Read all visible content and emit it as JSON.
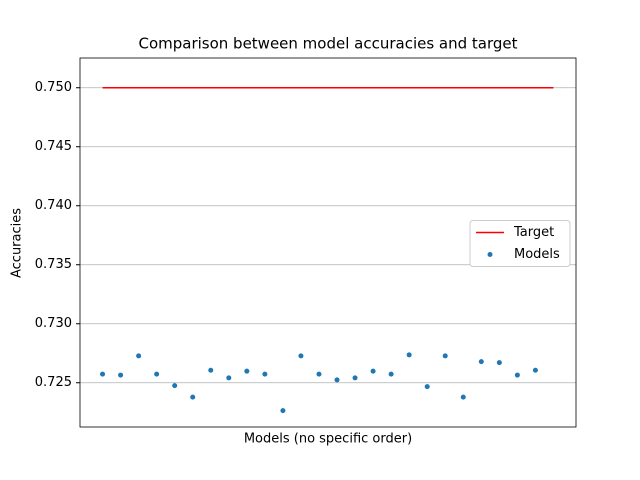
{
  "chart_data": {
    "type": "scatter",
    "title": "Comparison between model accuracies and target",
    "x_label": "Models (no specific order)",
    "y_label": "Accuracies",
    "xlim": [
      -1.25,
      26.25
    ],
    "ylim": [
      0.72125,
      0.75252
    ],
    "yticks": [
      {
        "value": 0.725,
        "label": "0.725"
      },
      {
        "value": 0.73,
        "label": "0.730"
      },
      {
        "value": 0.735,
        "label": "0.735"
      },
      {
        "value": 0.74,
        "label": "0.740"
      },
      {
        "value": 0.745,
        "label": "0.745"
      },
      {
        "value": 0.75,
        "label": "0.750"
      }
    ],
    "grid": "y",
    "legend": "center right",
    "series": [
      {
        "name": "Target",
        "type": "line",
        "color": "#ff0000",
        "x": [
          0,
          25
        ],
        "values": [
          0.75,
          0.75
        ]
      },
      {
        "name": "Models",
        "type": "scatter",
        "color": "#1f77b4",
        "x": [
          0,
          1,
          2,
          3,
          4,
          5,
          6,
          7,
          8,
          9,
          10,
          11,
          12,
          13,
          14,
          15,
          16,
          17,
          18,
          19,
          20,
          21,
          22,
          23,
          24
        ],
        "values": [
          0.72573,
          0.72565,
          0.72728,
          0.72573,
          0.72476,
          0.72378,
          0.72606,
          0.72541,
          0.72598,
          0.72573,
          0.72264,
          0.72728,
          0.72573,
          0.72524,
          0.72541,
          0.72598,
          0.72573,
          0.72736,
          0.72467,
          0.72728,
          0.72378,
          0.72679,
          0.72671,
          0.72565,
          0.72606
        ]
      }
    ]
  }
}
